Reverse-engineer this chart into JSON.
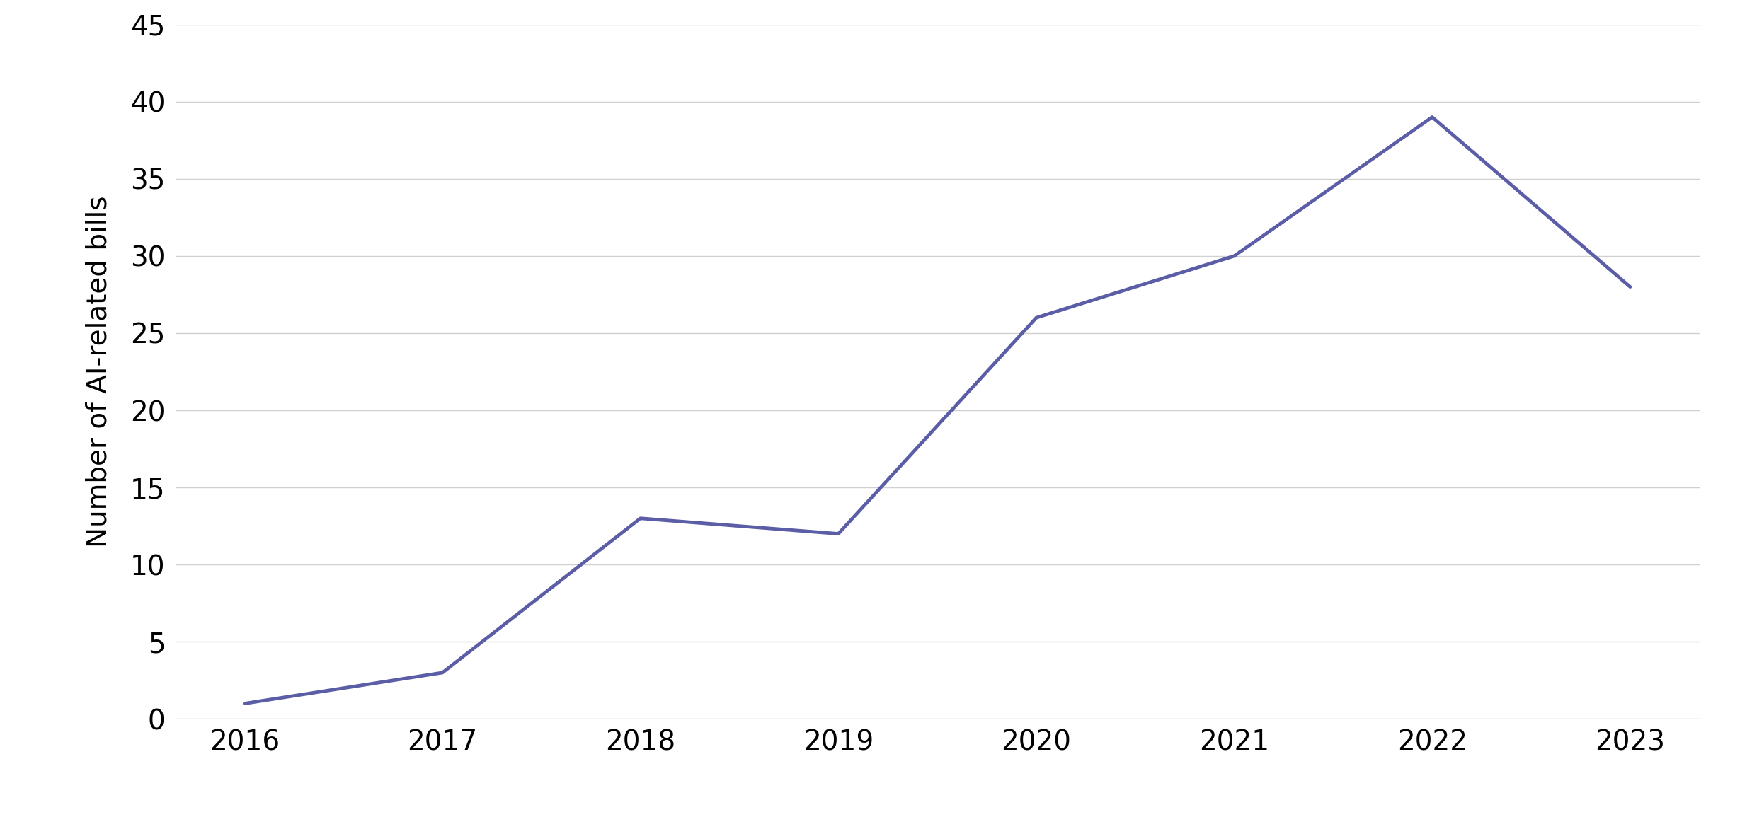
{
  "years": [
    2016,
    2017,
    2018,
    2019,
    2020,
    2021,
    2022,
    2023
  ],
  "values": [
    1,
    3,
    13,
    12,
    26,
    30,
    39,
    28
  ],
  "line_color": "#5b5ea6",
  "line_width": 3.5,
  "ylabel": "Number of AI-related bills",
  "ylim": [
    0,
    45
  ],
  "yticks": [
    0,
    5,
    10,
    15,
    20,
    25,
    30,
    35,
    40,
    45
  ],
  "xticks": [
    2016,
    2017,
    2018,
    2019,
    2020,
    2021,
    2022,
    2023
  ],
  "background_color": "#ffffff",
  "grid_color": "#d0d0d0",
  "tick_label_fontsize": 28,
  "ylabel_fontsize": 28,
  "font_family": "sans-serif"
}
